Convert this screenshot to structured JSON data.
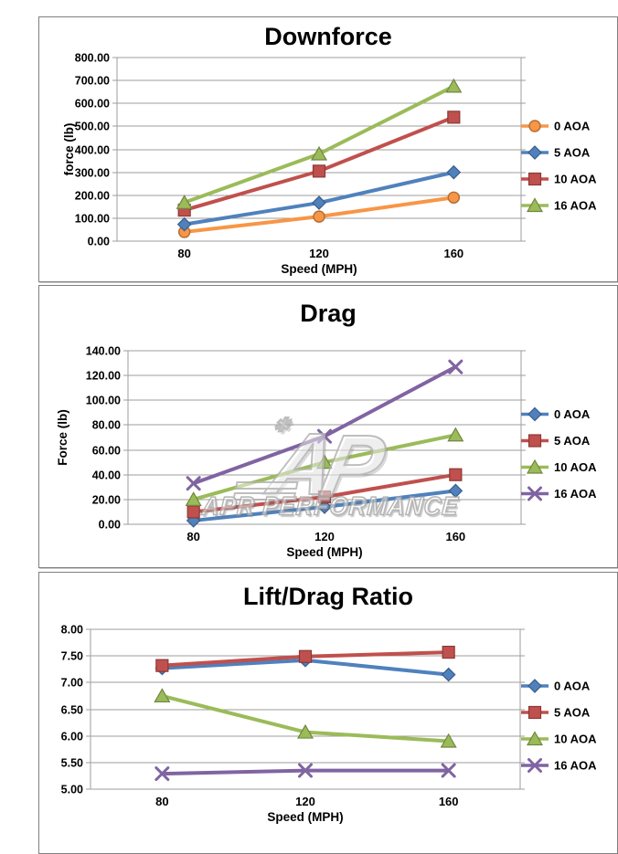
{
  "watermark": {
    "text": "APR PERFORMANCE",
    "monogram": "AP",
    "icon": "apr-logo-icon"
  },
  "chart_data": [
    {
      "type": "line",
      "title": "Downforce",
      "xlabel": "Speed (MPH)",
      "ylabel": "force (lb)",
      "categories": [
        "80",
        "120",
        "160"
      ],
      "ymin": 0,
      "ymax": 800,
      "ystep": 100,
      "ytick_decimals": 2,
      "grid": true,
      "legend_position": "right",
      "series": [
        {
          "name": "0 AOA",
          "marker": "circle",
          "color": "#F79646",
          "values": [
            40,
            107,
            190
          ]
        },
        {
          "name": "5 AOA",
          "marker": "diamond",
          "color": "#4F81BD",
          "values": [
            73,
            167,
            300
          ]
        },
        {
          "name": "10 AOA",
          "marker": "square",
          "color": "#C0504D",
          "values": [
            135,
            305,
            540
          ]
        },
        {
          "name": "16 AOA",
          "marker": "triangle",
          "color": "#9BBB59",
          "values": [
            168,
            380,
            675
          ]
        }
      ]
    },
    {
      "type": "line",
      "title": "Drag",
      "xlabel": "Speed (MPH)",
      "ylabel": "Force (lb)",
      "categories": [
        "80",
        "120",
        "160"
      ],
      "ymin": 0,
      "ymax": 140,
      "ystep": 20,
      "ytick_decimals": 2,
      "grid": true,
      "legend_position": "right",
      "series": [
        {
          "name": "0 AOA",
          "marker": "diamond",
          "color": "#4F81BD",
          "values": [
            3,
            14,
            27
          ]
        },
        {
          "name": "5 AOA",
          "marker": "square",
          "color": "#C0504D",
          "values": [
            10,
            22,
            40
          ]
        },
        {
          "name": "10 AOA",
          "marker": "triangle",
          "color": "#9BBB59",
          "values": [
            20,
            50,
            72
          ]
        },
        {
          "name": "16 AOA",
          "marker": "x",
          "color": "#8064A2",
          "values": [
            33,
            71,
            127
          ]
        }
      ]
    },
    {
      "type": "line",
      "title": "Lift/Drag Ratio",
      "xlabel": "Speed (MPH)",
      "ylabel": "",
      "categories": [
        "80",
        "120",
        "160"
      ],
      "ymin": 5,
      "ymax": 8,
      "ystep": 0.5,
      "ytick_decimals": 2,
      "grid": true,
      "legend_position": "right",
      "series": [
        {
          "name": "0 AOA",
          "marker": "diamond",
          "color": "#4F81BD",
          "values": [
            7.27,
            7.42,
            7.15
          ]
        },
        {
          "name": "5 AOA",
          "marker": "square",
          "color": "#C0504D",
          "values": [
            7.32,
            7.49,
            7.57
          ]
        },
        {
          "name": "10 AOA",
          "marker": "triangle",
          "color": "#9BBB59",
          "values": [
            6.75,
            6.07,
            5.9
          ]
        },
        {
          "name": "16 AOA",
          "marker": "x",
          "color": "#8064A2",
          "values": [
            5.29,
            5.35,
            5.35
          ]
        }
      ]
    }
  ]
}
